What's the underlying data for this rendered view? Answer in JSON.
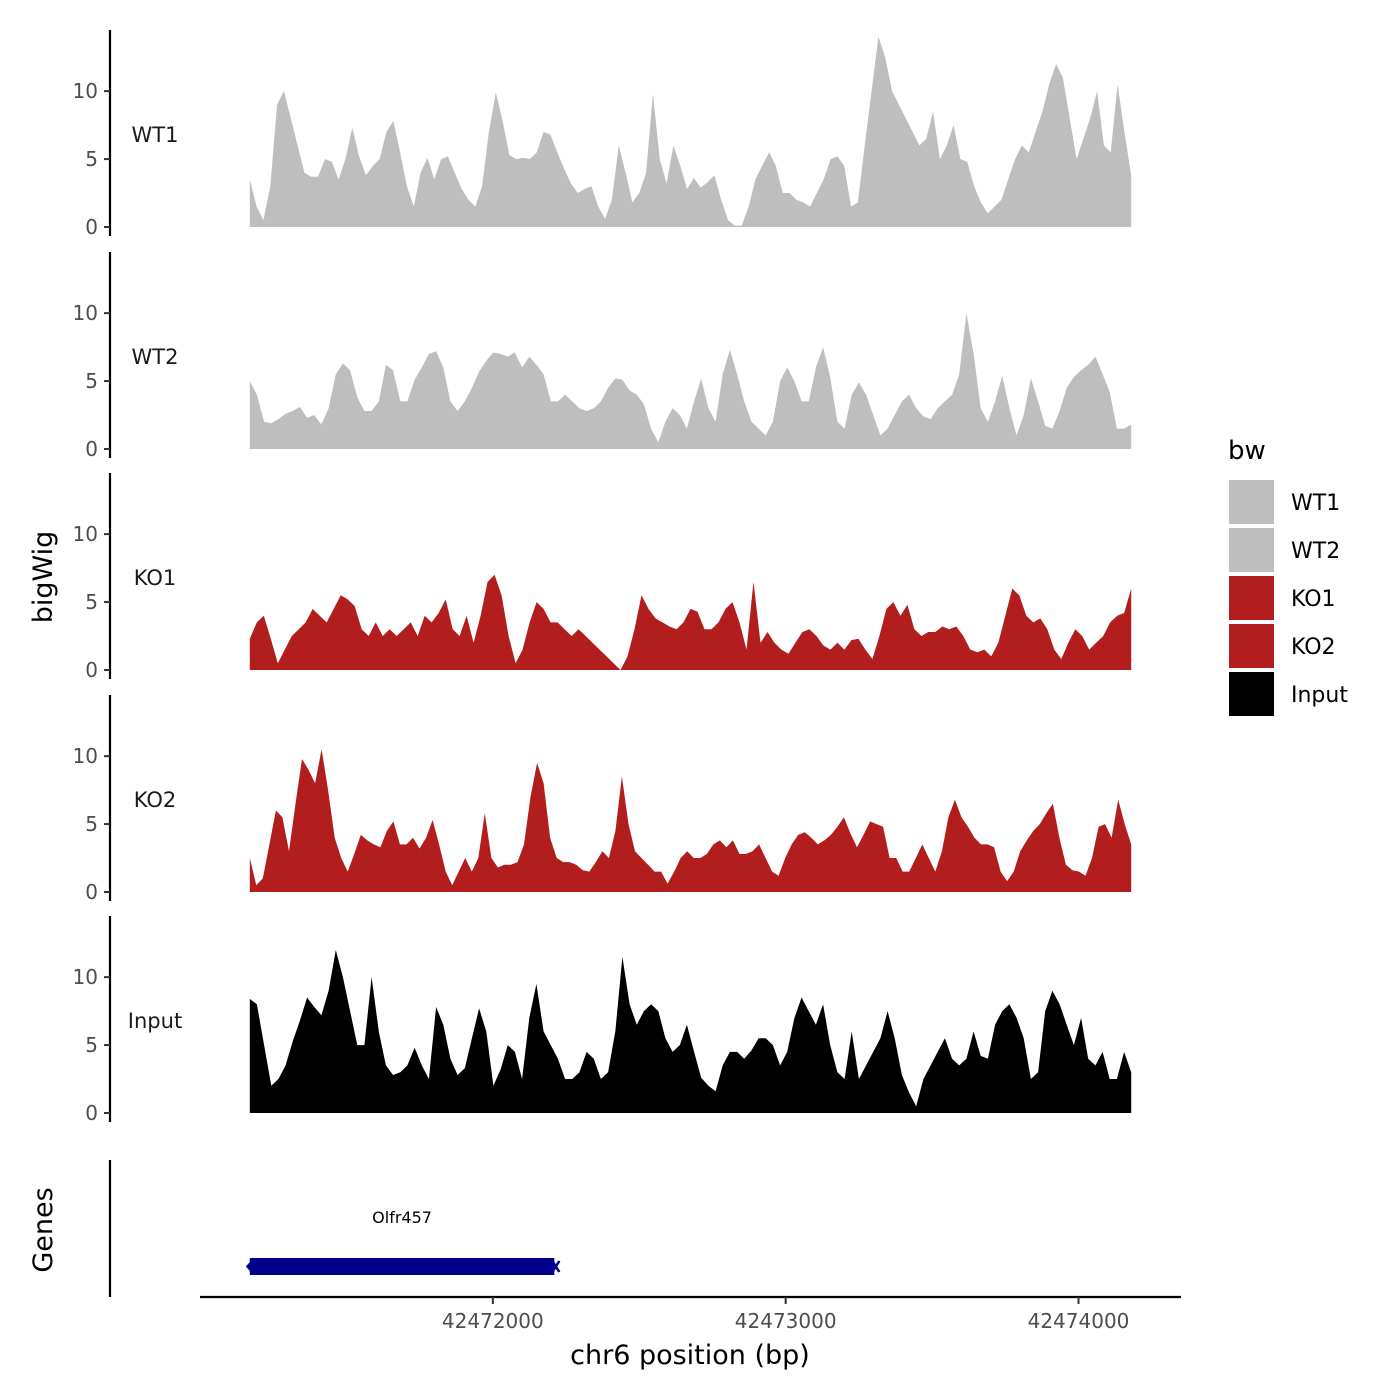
{
  "chart_data": {
    "type": "area",
    "title": "",
    "xlabel": "chr6 position (bp)",
    "ylabel": "bigWig",
    "xlim": [
      42471000,
      42474350
    ],
    "x_range": [
      42471170,
      42474180
    ],
    "x_ticks": [
      42472000,
      42473000,
      42474000
    ],
    "x_tick_labels": [
      "42472000",
      "42473000",
      "42474000"
    ],
    "ylim": [
      0,
      14.5
    ],
    "y_ticks": [
      0,
      5,
      10
    ],
    "y_tick_labels": [
      "0",
      "5",
      "10"
    ],
    "grid": false,
    "legend": {
      "title": "bw",
      "position": "right",
      "entries": [
        {
          "label": "WT1",
          "color": "#bebebe"
        },
        {
          "label": "WT2",
          "color": "#bebebe"
        },
        {
          "label": "KO1",
          "color": "#b21e1e"
        },
        {
          "label": "KO2",
          "color": "#b21e1e"
        },
        {
          "label": "Input",
          "color": "#000000"
        }
      ]
    },
    "series": [
      {
        "name": "WT1",
        "color": "#bebebe",
        "values": [
          3.5,
          1.5,
          0.5,
          3,
          9,
          10,
          8,
          6,
          4,
          3.7,
          3.7,
          5,
          4.8,
          3.5,
          5,
          7.3,
          5.2,
          3.8,
          4.5,
          5,
          7,
          7.8,
          5.5,
          3,
          1.5,
          4,
          5.1,
          3.5,
          5,
          5.2,
          4,
          2.8,
          2,
          1.5,
          3,
          7,
          9.9,
          7.8,
          5.3,
          5,
          5.1,
          5,
          5.5,
          7,
          6.8,
          5.5,
          4.3,
          3.2,
          2.5,
          2.8,
          3,
          1.5,
          0.6,
          2,
          6,
          4,
          1.8,
          2.5,
          4,
          9.8,
          5,
          3.2,
          6,
          4.5,
          2.8,
          3.6,
          2.9,
          3.3,
          3.8,
          2,
          0.5,
          0.1,
          0.1,
          1.5,
          3.5,
          4.5,
          5.5,
          4.5,
          2.5,
          2.5,
          2,
          1.8,
          1.5,
          2.5,
          3.5,
          5,
          5.2,
          4.5,
          1.5,
          1.8,
          6,
          10,
          14,
          12.5,
          10,
          9,
          8,
          7,
          6,
          6.5,
          8.5,
          5,
          6,
          7.5,
          5,
          4.8,
          3,
          1.8,
          1,
          1.5,
          2,
          3.5,
          5,
          6,
          5.5,
          7,
          8.5,
          10.5,
          12,
          11,
          8,
          5,
          6.5,
          8,
          10,
          6,
          5.5,
          10.5,
          7,
          3.8
        ]
      },
      {
        "name": "WT2",
        "color": "#bebebe",
        "values": [
          5,
          4,
          2,
          1.9,
          2.2,
          2.6,
          2.8,
          3.1,
          2.3,
          2.5,
          1.8,
          3,
          5.5,
          6.3,
          5.8,
          3.8,
          2.8,
          2.8,
          3.5,
          6.2,
          5.8,
          3.5,
          3.5,
          5.1,
          6,
          7,
          7.2,
          6,
          3.5,
          2.8,
          3.5,
          4.5,
          5.7,
          6.5,
          7.1,
          7,
          6.8,
          7.1,
          6,
          6.8,
          6.2,
          5.5,
          3.5,
          3.5,
          4,
          3.5,
          3,
          2.8,
          3,
          3.5,
          4.5,
          5.2,
          5.1,
          4.3,
          4,
          3.3,
          1.5,
          0.5,
          2,
          3,
          2.5,
          1.5,
          3.5,
          5.2,
          3,
          2,
          5.5,
          7.3,
          5.5,
          3.5,
          2,
          1.5,
          1,
          2,
          5,
          6,
          5,
          3.5,
          3.5,
          6,
          7.5,
          5.3,
          2,
          1.5,
          4,
          4.9,
          4,
          2.5,
          1,
          1.5,
          2.5,
          3.5,
          4,
          3,
          2.4,
          2.2,
          3,
          3.5,
          4,
          5.5,
          10,
          7,
          3,
          2,
          3.5,
          5.4,
          3,
          1,
          2.5,
          5.2,
          3.5,
          1.7,
          1.5,
          2.8,
          4.5,
          5.3,
          5.8,
          6.2,
          6.8,
          5.5,
          4.2,
          1.5,
          1.5,
          1.8
        ]
      },
      {
        "name": "KO1",
        "color": "#b21e1e",
        "values": [
          2.3,
          3.5,
          4,
          2.3,
          0.5,
          1.5,
          2.5,
          3,
          3.5,
          4.5,
          4,
          3.5,
          4.5,
          5.5,
          5.2,
          4.7,
          3,
          2.5,
          3.5,
          2.5,
          3,
          2.5,
          3,
          3.5,
          2.5,
          4,
          3.5,
          4.2,
          5.2,
          3,
          2.5,
          4,
          2,
          4,
          6.5,
          7,
          5.5,
          2.5,
          0.5,
          1.5,
          3.5,
          5,
          4.5,
          3.5,
          3.5,
          3,
          2.5,
          3,
          2.5,
          2,
          1.5,
          1,
          0.5,
          0,
          1,
          3,
          5.5,
          4.5,
          3.8,
          3.5,
          3.2,
          3,
          3.5,
          4.5,
          4.3,
          3,
          3,
          3.5,
          4.5,
          5,
          3.5,
          1.5,
          6.5,
          2,
          2.8,
          2,
          1.5,
          1.2,
          2,
          2.8,
          3,
          2.5,
          1.8,
          1.5,
          2,
          1.5,
          2.2,
          2.3,
          1.5,
          0.8,
          2.5,
          4.5,
          5,
          4,
          4.8,
          3,
          2.5,
          2.8,
          2.8,
          3.2,
          3,
          3.2,
          2.5,
          1.5,
          1.3,
          1.5,
          1,
          2,
          4,
          6,
          5.5,
          4,
          3.5,
          3.8,
          3,
          1.5,
          0.8,
          2,
          3,
          2.5,
          1.5,
          2,
          2.5,
          3.5,
          4,
          4.2,
          6
        ]
      },
      {
        "name": "KO2",
        "color": "#b21e1e",
        "values": [
          2.5,
          0.5,
          1,
          3.5,
          6,
          5.5,
          3,
          6.5,
          9.8,
          9,
          8,
          10.5,
          7.5,
          4,
          2.5,
          1.5,
          2.8,
          4.2,
          3.8,
          3.5,
          3.3,
          4.5,
          5.2,
          3.5,
          3.5,
          4,
          3.2,
          4,
          5.3,
          3.5,
          1.5,
          0.5,
          1.5,
          2.5,
          1.5,
          2.5,
          5.8,
          2.5,
          1.8,
          2,
          2,
          2.2,
          3.5,
          7,
          9.5,
          8,
          4,
          2.5,
          2.2,
          2.2,
          2,
          1.6,
          1.5,
          2.2,
          3,
          2.5,
          4.5,
          8.5,
          5,
          3,
          2.5,
          2,
          1.5,
          1.5,
          0.6,
          1.5,
          2.5,
          3,
          2.5,
          2.5,
          2.8,
          3.5,
          3.8,
          3.3,
          3.8,
          2.8,
          2.8,
          3,
          3.5,
          2.5,
          1.5,
          1.2,
          2.5,
          3.5,
          4.2,
          4.4,
          4,
          3.5,
          3.8,
          4.2,
          4.8,
          5.5,
          4.3,
          3.3,
          4.2,
          5.2,
          5,
          4.8,
          2.5,
          2.5,
          1.5,
          1.5,
          2.5,
          3.5,
          2.5,
          1.5,
          3,
          5.5,
          6.8,
          5.5,
          4.8,
          4,
          3.5,
          3.5,
          3.3,
          1.5,
          0.8,
          1.5,
          3,
          3.8,
          4.5,
          5,
          5.8,
          6.5,
          4,
          2,
          1.6,
          1.5,
          1.2,
          2.5,
          4.8,
          5,
          4,
          6.8,
          5,
          3.5
        ]
      },
      {
        "name": "Input",
        "color": "#000000",
        "values": [
          8.4,
          8,
          5,
          2,
          2.5,
          3.5,
          5.3,
          6.8,
          8.5,
          7.8,
          7.2,
          9,
          12,
          10,
          7.5,
          5,
          5,
          10,
          6,
          3.5,
          2.8,
          3,
          3.5,
          4.8,
          3.5,
          2.5,
          7.8,
          6.5,
          4,
          2.8,
          3.3,
          5.5,
          7.7,
          6,
          2,
          3.2,
          5,
          4.5,
          2.5,
          7,
          9.5,
          6,
          5,
          4,
          2.5,
          2.5,
          3,
          4.5,
          4,
          2.5,
          3,
          6,
          11.5,
          8,
          6.5,
          7.5,
          8,
          7.5,
          5.5,
          4.5,
          5,
          6.5,
          4.5,
          2.6,
          2,
          1.6,
          3.5,
          4.5,
          4.5,
          4,
          4.6,
          5.5,
          5.5,
          5,
          3.5,
          4.5,
          7,
          8.5,
          7.5,
          6.5,
          8,
          5,
          3,
          2.5,
          6,
          2.5,
          3.5,
          4.5,
          5.5,
          7.5,
          5.5,
          2.8,
          1.5,
          0.5,
          2.5,
          3.5,
          4.5,
          5.5,
          4,
          3.5,
          4,
          6,
          4.2,
          4,
          6.5,
          7.5,
          8,
          7,
          5.5,
          2.5,
          3,
          7.5,
          9,
          8,
          6.5,
          5,
          7,
          4,
          3.5,
          4.5,
          2.5,
          2.5,
          4.5,
          3
        ]
      }
    ],
    "genes": {
      "title": "Genes",
      "items": [
        {
          "name": "Olfr457",
          "start": 42471170,
          "end": 42472210,
          "strand": "-",
          "color": "#00008b"
        }
      ]
    }
  }
}
